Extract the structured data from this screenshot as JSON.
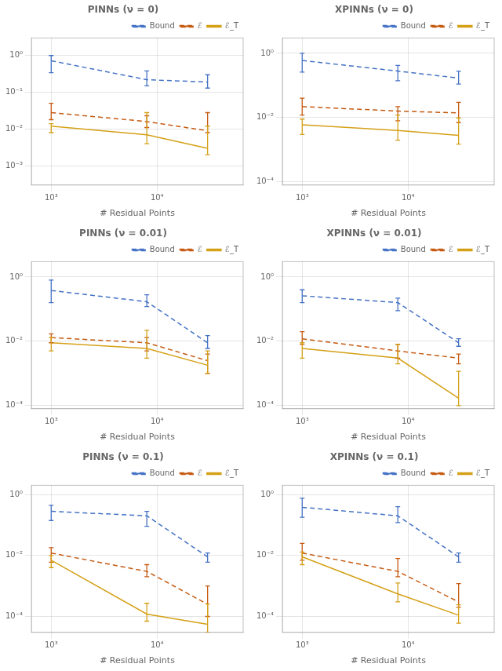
{
  "chart_data": [
    {
      "type": "line",
      "title": "PINNs (ν = 0)",
      "xlabel": "# Residual Points",
      "x": [
        1000,
        8000,
        30000
      ],
      "series": [
        {
          "name": "Bound",
          "color": "#4472C4",
          "line_style": "dashed",
          "values": [
            0.72,
            0.22,
            0.19
          ],
          "error_low": [
            0.38,
            0.07,
            0.06
          ],
          "error_high": [
            0.28,
            0.16,
            0.11
          ]
        },
        {
          "name": "ℰ",
          "color": "#C55A11",
          "line_style": "dashed",
          "values": [
            0.028,
            0.016,
            0.009
          ],
          "error_low": [
            0.01,
            0.005,
            0.001
          ],
          "error_high": [
            0.022,
            0.007,
            0.019
          ]
        },
        {
          "name": "ℰ_T",
          "color": "#D4A017",
          "line_style": "solid",
          "values": [
            0.012,
            0.007,
            0.003
          ],
          "error_low": [
            0.004,
            0.003,
            0.001
          ],
          "error_high": [
            0.002,
            0.021,
            0.009
          ]
        }
      ],
      "xlim": [
        650,
        65000
      ],
      "xticks": [
        {
          "value": 1000,
          "label": "10³"
        },
        {
          "value": 10000,
          "label": "10⁴"
        }
      ],
      "ylim": [
        0.0003,
        3.0
      ],
      "yticks": [
        {
          "value": 0.001,
          "label": "10⁻³"
        },
        {
          "value": 0.01,
          "label": "10⁻²"
        },
        {
          "value": 0.1,
          "label": "10⁻¹"
        },
        {
          "value": 1,
          "label": "10⁰"
        }
      ],
      "log": true,
      "grid": true,
      "legend": "upper right"
    },
    {
      "type": "line",
      "title": "XPINNs (ν = 0)",
      "xlabel": "# Residual Points",
      "x": [
        1000,
        8000,
        30000
      ],
      "series": [
        {
          "name": "Bound",
          "color": "#4472C4",
          "line_style": "dashed",
          "values": [
            0.6,
            0.28,
            0.17
          ],
          "error_low": [
            0.34,
            0.14,
            0.06
          ],
          "error_high": [
            0.4,
            0.14,
            0.11
          ]
        },
        {
          "name": "ℰ",
          "color": "#C55A11",
          "line_style": "dashed",
          "values": [
            0.022,
            0.016,
            0.014
          ],
          "error_low": [
            0.01,
            0.008,
            0.007
          ],
          "error_high": [
            0.018,
            0.006,
            0.016
          ]
        },
        {
          "name": "ℰ_T",
          "color": "#D4A017",
          "line_style": "solid",
          "values": [
            0.006,
            0.004,
            0.0028
          ],
          "error_low": [
            0.003,
            0.002,
            0.0013
          ],
          "error_high": [
            0.003,
            0.008,
            0.007
          ]
        }
      ],
      "xlim": [
        650,
        65000
      ],
      "xticks": [
        {
          "value": 1000,
          "label": "10³"
        },
        {
          "value": 10000,
          "label": "10⁴"
        }
      ],
      "ylim": [
        8e-05,
        3.0
      ],
      "yticks": [
        {
          "value": 0.0001,
          "label": "10⁻⁴"
        },
        {
          "value": 0.01,
          "label": "10⁻²"
        },
        {
          "value": 1,
          "label": "10⁰"
        }
      ],
      "log": true,
      "grid": true,
      "legend": "upper right"
    },
    {
      "type": "line",
      "title": "PINNs (ν = 0.01)",
      "xlabel": "# Residual Points",
      "x": [
        1000,
        8000,
        30000
      ],
      "series": [
        {
          "name": "Bound",
          "color": "#4472C4",
          "line_style": "dashed",
          "values": [
            0.38,
            0.17,
            0.009
          ],
          "error_low": [
            0.22,
            0.05,
            0.003
          ],
          "error_high": [
            0.42,
            0.11,
            0.006
          ]
        },
        {
          "name": "ℰ",
          "color": "#C55A11",
          "line_style": "dashed",
          "values": [
            0.013,
            0.009,
            0.0025
          ],
          "error_low": [
            0.004,
            0.004,
            0.0015
          ],
          "error_high": [
            0.004,
            0.004,
            0.0015
          ]
        },
        {
          "name": "ℰ_T",
          "color": "#D4A017",
          "line_style": "solid",
          "values": [
            0.009,
            0.006,
            0.0018
          ],
          "error_low": [
            0.004,
            0.003,
            0.0008
          ],
          "error_high": [
            0.004,
            0.016,
            0.0032
          ]
        }
      ],
      "xlim": [
        650,
        65000
      ],
      "xticks": [
        {
          "value": 1000,
          "label": "10³"
        },
        {
          "value": 10000,
          "label": "10⁴"
        }
      ],
      "ylim": [
        8e-05,
        3.0
      ],
      "yticks": [
        {
          "value": 0.0001,
          "label": "10⁻⁴"
        },
        {
          "value": 0.01,
          "label": "10⁻²"
        },
        {
          "value": 1,
          "label": "10⁰"
        }
      ],
      "log": true,
      "grid": true,
      "legend": "upper right"
    },
    {
      "type": "line",
      "title": "XPINNs (ν = 0.01)",
      "xlabel": "# Residual Points",
      "x": [
        1000,
        8000,
        30000
      ],
      "series": [
        {
          "name": "Bound",
          "color": "#4472C4",
          "line_style": "dashed",
          "values": [
            0.26,
            0.16,
            0.009
          ],
          "error_low": [
            0.1,
            0.07,
            0.002
          ],
          "error_high": [
            0.14,
            0.06,
            0.003
          ]
        },
        {
          "name": "ℰ",
          "color": "#C55A11",
          "line_style": "dashed",
          "values": [
            0.012,
            0.005,
            0.003
          ],
          "error_low": [
            0.004,
            0.002,
            0.001
          ],
          "error_high": [
            0.008,
            0.003,
            0.001
          ]
        },
        {
          "name": "ℰ_T",
          "color": "#D4A017",
          "line_style": "solid",
          "values": [
            0.006,
            0.003,
            0.00017
          ],
          "error_low": [
            0.003,
            0.001,
            7e-05
          ],
          "error_high": [
            0.003,
            0.005,
            0.001
          ]
        }
      ],
      "xlim": [
        650,
        65000
      ],
      "xticks": [
        {
          "value": 1000,
          "label": "10³"
        },
        {
          "value": 10000,
          "label": "10⁴"
        }
      ],
      "ylim": [
        8e-05,
        3.0
      ],
      "yticks": [
        {
          "value": 0.0001,
          "label": "10⁻⁴"
        },
        {
          "value": 0.01,
          "label": "10⁻²"
        },
        {
          "value": 1,
          "label": "10⁰"
        }
      ],
      "log": true,
      "grid": true,
      "legend": "upper right"
    },
    {
      "type": "line",
      "title": "PINNs (ν = 0.1)",
      "xlabel": "# Residual Points",
      "x": [
        1000,
        8000,
        30000
      ],
      "series": [
        {
          "name": "Bound",
          "color": "#4472C4",
          "line_style": "dashed",
          "values": [
            0.28,
            0.2,
            0.009
          ],
          "error_low": [
            0.14,
            0.11,
            0.003
          ],
          "error_high": [
            0.16,
            0.08,
            0.003
          ]
        },
        {
          "name": "ℰ",
          "color": "#C55A11",
          "line_style": "dashed",
          "values": [
            0.012,
            0.003,
            0.00025
          ],
          "error_low": [
            0.006,
            0.001,
            0.00015
          ],
          "error_high": [
            0.006,
            0.002,
            0.00075
          ]
        },
        {
          "name": "ℰ_T",
          "color": "#D4A017",
          "line_style": "solid",
          "values": [
            0.007,
            0.00012,
            5.5e-05
          ],
          "error_low": [
            0.003,
            5e-05,
            2.5e-05
          ],
          "error_high": [
            0.003,
            0.00015,
            0.0002
          ]
        }
      ],
      "xlim": [
        650,
        65000
      ],
      "xticks": [
        {
          "value": 1000,
          "label": "10³"
        },
        {
          "value": 10000,
          "label": "10⁴"
        }
      ],
      "ylim": [
        3e-05,
        2.0
      ],
      "yticks": [
        {
          "value": 0.0001,
          "label": "10⁻⁴"
        },
        {
          "value": 0.01,
          "label": "10⁻²"
        },
        {
          "value": 1,
          "label": "10⁰"
        }
      ],
      "log": true,
      "grid": true,
      "legend": "upper right"
    },
    {
      "type": "line",
      "title": "XPINNs (ν = 0.1)",
      "xlabel": "# Residual Points",
      "x": [
        1000,
        8000,
        30000
      ],
      "series": [
        {
          "name": "Bound",
          "color": "#4472C4",
          "line_style": "dashed",
          "values": [
            0.38,
            0.2,
            0.009
          ],
          "error_low": [
            0.2,
            0.08,
            0.003
          ],
          "error_high": [
            0.37,
            0.2,
            0.003
          ]
        },
        {
          "name": "ℰ",
          "color": "#C55A11",
          "line_style": "dashed",
          "values": [
            0.012,
            0.003,
            0.0003
          ],
          "error_low": [
            0.005,
            0.001,
            0.0001
          ],
          "error_high": [
            0.013,
            0.005,
            0.0009
          ]
        },
        {
          "name": "ℰ_T",
          "color": "#D4A017",
          "line_style": "solid",
          "values": [
            0.009,
            0.00055,
            0.00011
          ],
          "error_low": [
            0.004,
            0.00025,
            5e-05
          ],
          "error_high": [
            0.004,
            0.0007,
            0.00013
          ]
        }
      ],
      "xlim": [
        650,
        65000
      ],
      "xticks": [
        {
          "value": 1000,
          "label": "10³"
        },
        {
          "value": 10000,
          "label": "10⁴"
        }
      ],
      "ylim": [
        3e-05,
        2.0
      ],
      "yticks": [
        {
          "value": 0.0001,
          "label": "10⁻⁴"
        },
        {
          "value": 0.01,
          "label": "10⁻²"
        },
        {
          "value": 1,
          "label": "10⁰"
        }
      ],
      "log": true,
      "grid": true,
      "legend": "upper right"
    }
  ]
}
